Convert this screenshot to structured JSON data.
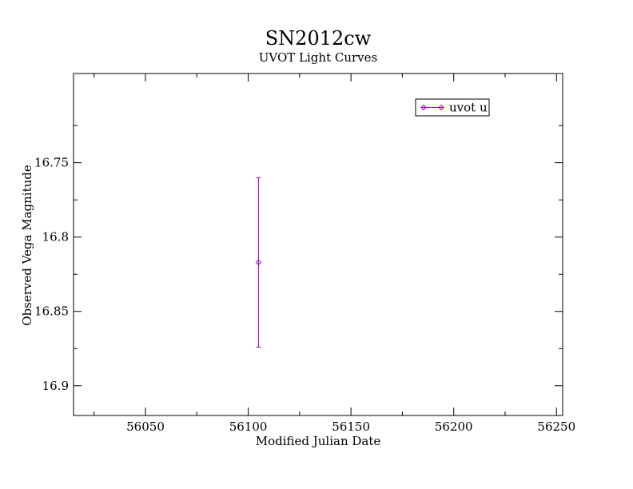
{
  "chart_data": {
    "type": "scatter",
    "title": "SN2012cw",
    "subtitle": "UVOT Light Curves",
    "xlabel": "Modified Julian Date",
    "ylabel": "Observed Vega Magnitude",
    "xlim": [
      56015,
      56253
    ],
    "ylim": [
      16.92,
      16.69
    ],
    "y_inverted": true,
    "x_ticks": [
      56050,
      56100,
      56150,
      56200,
      56250
    ],
    "x_tick_labels": [
      "56050",
      "56100",
      "56150",
      "56200",
      "56250"
    ],
    "y_ticks": [
      16.75,
      16.8,
      16.85,
      16.9
    ],
    "y_tick_labels": [
      "16.75",
      "16.8",
      "16.85",
      "16.9"
    ],
    "grid": false,
    "legend_position": "top-right",
    "series": [
      {
        "name": "uvot u",
        "color": "#a000c0",
        "marker": "diamond",
        "points": [
          {
            "x": 56105,
            "y": 16.817,
            "y_err_low": 16.76,
            "y_err_high": 16.874
          }
        ]
      }
    ]
  }
}
